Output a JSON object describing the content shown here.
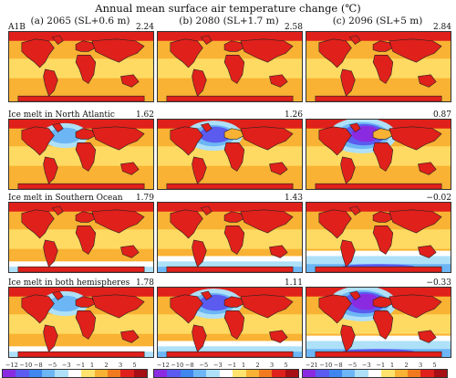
{
  "figure": {
    "title": "Annual mean surface air temperature change (℃)",
    "columns": [
      {
        "label": "(a) 2065 (SL+0.6 m)"
      },
      {
        "label": "(b) 2080 (SL+1.7 m)"
      },
      {
        "label": "(c) 2096 (SL+5 m)"
      }
    ],
    "rows": [
      {
        "label": "A1B",
        "values": [
          "2.24",
          "2.58",
          "2.84"
        ],
        "scenario": "base"
      },
      {
        "label": "Ice melt in North Atlantic",
        "values": [
          "1.62",
          "1.26",
          "0.87"
        ],
        "scenario": "north"
      },
      {
        "label": "Ice melt in Southern Ocean",
        "values": [
          "1.79",
          "1.43",
          "−0.02"
        ],
        "scenario": "south"
      },
      {
        "label": "Ice melt in both hemispheres",
        "values": [
          "1.78",
          "1.11",
          "−0.33"
        ],
        "scenario": "both"
      }
    ],
    "colorbars": [
      {
        "ticks": [
          "−12",
          "−10",
          "−8",
          "−5",
          "−3",
          "−1",
          "1",
          "2",
          "3",
          "5"
        ]
      },
      {
        "ticks": [
          "−12",
          "−10",
          "−8",
          "−5",
          "−3",
          "−1",
          "1",
          "2",
          "3",
          "5"
        ]
      },
      {
        "ticks": [
          "−21",
          "−10",
          "−8",
          "−5",
          "−3",
          "−1",
          "1",
          "2",
          "3",
          "5"
        ]
      }
    ],
    "palette": [
      "#8a2be2",
      "#5b5bf0",
      "#3f86ef",
      "#6db6f5",
      "#aee0f8",
      "#ffffff",
      "#ffe36e",
      "#f9b233",
      "#f27a1e",
      "#e0201b",
      "#a50f15"
    ]
  }
}
